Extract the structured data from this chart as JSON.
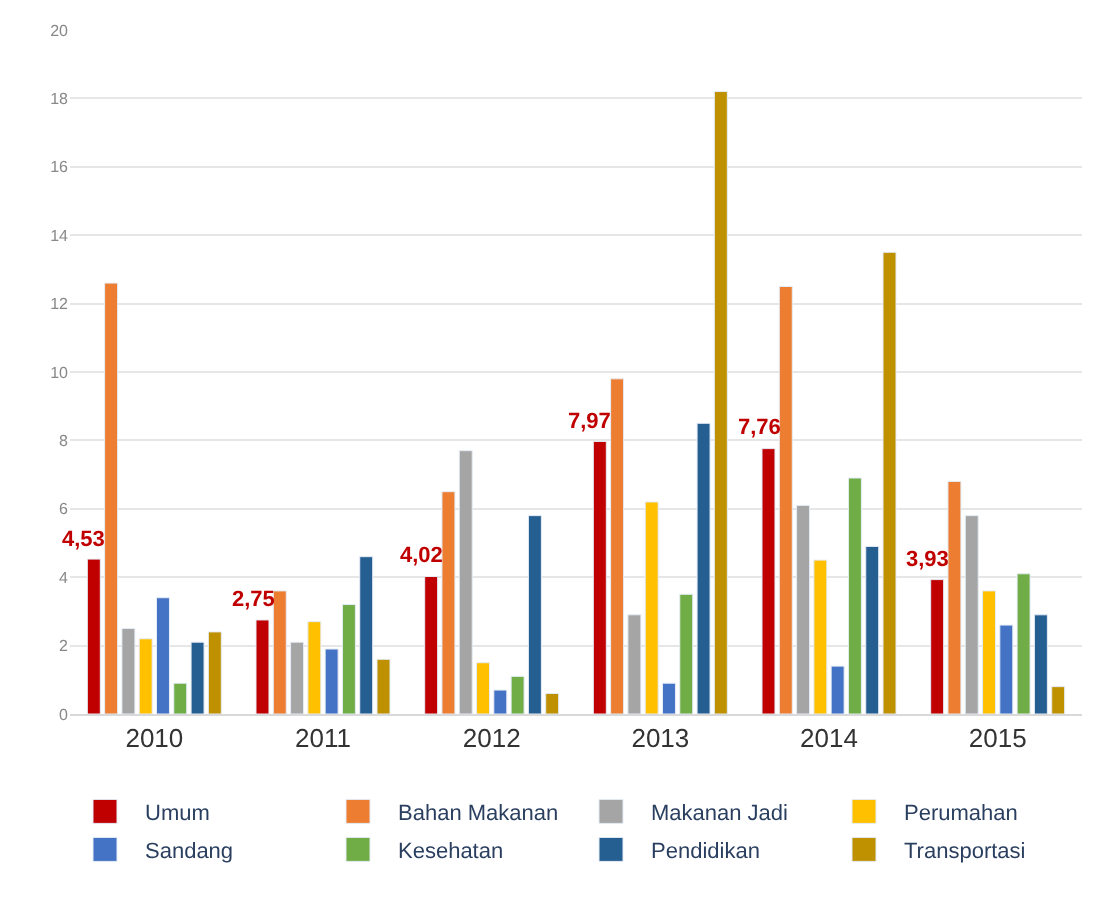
{
  "chart_data": {
    "type": "bar",
    "categories": [
      "2010",
      "2011",
      "2012",
      "2013",
      "2014",
      "2015"
    ],
    "series": [
      {
        "name": "Umum",
        "color": "#c00000",
        "values": [
          4.53,
          2.75,
          4.02,
          7.97,
          7.76,
          3.93
        ],
        "value_labels": [
          "4,53",
          "2,75",
          "4,02",
          "7,97",
          "7,76",
          "3,93"
        ]
      },
      {
        "name": "Bahan Makanan",
        "color": "#ed7d31",
        "values": [
          12.6,
          3.6,
          6.5,
          9.8,
          12.5,
          6.8
        ]
      },
      {
        "name": "Makanan Jadi",
        "color": "#a5a5a5",
        "values": [
          2.5,
          2.1,
          7.7,
          2.9,
          6.1,
          5.8
        ]
      },
      {
        "name": "Perumahan",
        "color": "#ffc000",
        "values": [
          2.2,
          2.7,
          1.5,
          6.2,
          4.5,
          3.6
        ]
      },
      {
        "name": "Sandang",
        "color": "#4472c4",
        "values": [
          3.4,
          1.9,
          0.7,
          0.9,
          1.4,
          2.6
        ]
      },
      {
        "name": "Kesehatan",
        "color": "#70ad47",
        "values": [
          0.9,
          3.2,
          1.1,
          3.5,
          6.9,
          4.1
        ]
      },
      {
        "name": "Pendidikan",
        "color": "#255e91",
        "values": [
          2.1,
          4.6,
          5.8,
          8.5,
          4.9,
          2.9
        ]
      },
      {
        "name": "Transportasi",
        "color": "#bf9000",
        "values": [
          2.4,
          1.6,
          0.6,
          18.2,
          13.5,
          0.8
        ]
      }
    ],
    "ylim": [
      0,
      20
    ],
    "yticks": [
      0,
      2,
      4,
      6,
      8,
      10,
      12,
      14,
      16,
      18,
      20
    ],
    "grid": "y",
    "legend": "bottom"
  }
}
